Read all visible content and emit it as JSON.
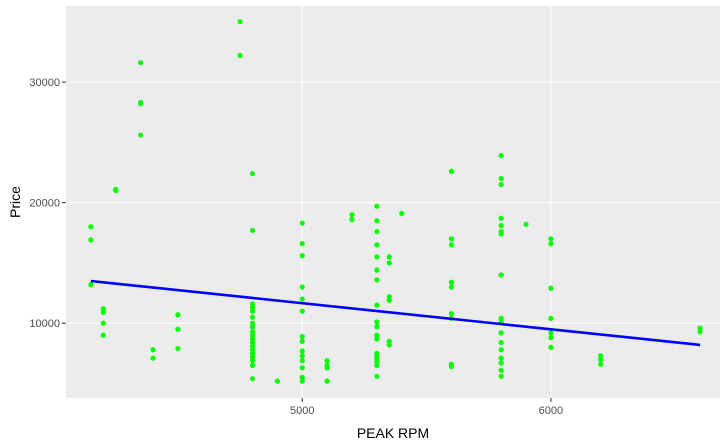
{
  "colors": {
    "panel_background": "#ebebeb",
    "grid_major": "#ffffff",
    "grid_minor": "#f2f2f2",
    "points": "#00ff00",
    "trend_line": "#0000ff",
    "tick_label": "#4d4d4d"
  },
  "chart_data": {
    "type": "scatter",
    "title": "",
    "xlabel": "PEAK RPM",
    "ylabel": "Price",
    "xlim": [
      4050,
      6680
    ],
    "ylim": [
      3800,
      36300
    ],
    "x_ticks": [
      5000,
      6000
    ],
    "y_ticks": [
      10000,
      20000,
      30000
    ],
    "x_tick_labels": [
      "5000",
      "6000"
    ],
    "y_tick_labels": [
      "10000",
      "20000",
      "30000"
    ],
    "grid": true,
    "legend": "none",
    "trend_line": {
      "x": [
        4150,
        6600
      ],
      "y": [
        13500,
        8200
      ]
    },
    "points": [
      [
        4150,
        18000
      ],
      [
        4150,
        16900
      ],
      [
        4150,
        13200
      ],
      [
        4200,
        11200
      ],
      [
        4200,
        10900
      ],
      [
        4200,
        10000
      ],
      [
        4200,
        9000
      ],
      [
        4250,
        21100
      ],
      [
        4250,
        21000
      ],
      [
        4350,
        31600
      ],
      [
        4350,
        28300
      ],
      [
        4350,
        28200
      ],
      [
        4350,
        25600
      ],
      [
        4400,
        7800
      ],
      [
        4400,
        7100
      ],
      [
        4500,
        10700
      ],
      [
        4500,
        9500
      ],
      [
        4500,
        7900
      ],
      [
        4750,
        35000
      ],
      [
        4750,
        32200
      ],
      [
        4800,
        22400
      ],
      [
        4800,
        17700
      ],
      [
        4800,
        11600
      ],
      [
        4800,
        11300
      ],
      [
        4800,
        11000
      ],
      [
        4800,
        10500
      ],
      [
        4800,
        10000
      ],
      [
        4800,
        9700
      ],
      [
        4800,
        9300
      ],
      [
        4800,
        9000
      ],
      [
        4800,
        8700
      ],
      [
        4800,
        8400
      ],
      [
        4800,
        8100
      ],
      [
        4800,
        7800
      ],
      [
        4800,
        7500
      ],
      [
        4800,
        7200
      ],
      [
        4800,
        6900
      ],
      [
        4800,
        6500
      ],
      [
        4800,
        5400
      ],
      [
        4900,
        5200
      ],
      [
        5000,
        18300
      ],
      [
        5000,
        16600
      ],
      [
        5000,
        15600
      ],
      [
        5000,
        13000
      ],
      [
        5000,
        12000
      ],
      [
        5000,
        11000
      ],
      [
        5000,
        8900
      ],
      [
        5000,
        8500
      ],
      [
        5000,
        7700
      ],
      [
        5000,
        7300
      ],
      [
        5000,
        6900
      ],
      [
        5000,
        6300
      ],
      [
        5000,
        5500
      ],
      [
        5000,
        5200
      ],
      [
        5100,
        6900
      ],
      [
        5100,
        6500
      ],
      [
        5100,
        6300
      ],
      [
        5100,
        5200
      ],
      [
        5200,
        19000
      ],
      [
        5200,
        18600
      ],
      [
        5300,
        19700
      ],
      [
        5300,
        18500
      ],
      [
        5300,
        17600
      ],
      [
        5300,
        16500
      ],
      [
        5300,
        15500
      ],
      [
        5300,
        14400
      ],
      [
        5300,
        13600
      ],
      [
        5300,
        11500
      ],
      [
        5300,
        10100
      ],
      [
        5300,
        9700
      ],
      [
        5300,
        9000
      ],
      [
        5300,
        8700
      ],
      [
        5300,
        7500
      ],
      [
        5300,
        7200
      ],
      [
        5300,
        7000
      ],
      [
        5300,
        6800
      ],
      [
        5300,
        6500
      ],
      [
        5300,
        5600
      ],
      [
        5350,
        15500
      ],
      [
        5350,
        15000
      ],
      [
        5350,
        12200
      ],
      [
        5350,
        11900
      ],
      [
        5350,
        8500
      ],
      [
        5350,
        8200
      ],
      [
        5400,
        19100
      ],
      [
        5600,
        22600
      ],
      [
        5600,
        17000
      ],
      [
        5600,
        16500
      ],
      [
        5600,
        13400
      ],
      [
        5600,
        13000
      ],
      [
        5600,
        10800
      ],
      [
        5600,
        10400
      ],
      [
        5600,
        6600
      ],
      [
        5600,
        6400
      ],
      [
        5800,
        23900
      ],
      [
        5800,
        22000
      ],
      [
        5800,
        21500
      ],
      [
        5800,
        18700
      ],
      [
        5800,
        18100
      ],
      [
        5800,
        17600
      ],
      [
        5800,
        17400
      ],
      [
        5800,
        14000
      ],
      [
        5800,
        10400
      ],
      [
        5800,
        10100
      ],
      [
        5800,
        9200
      ],
      [
        5800,
        8400
      ],
      [
        5800,
        7800
      ],
      [
        5800,
        7100
      ],
      [
        5800,
        6700
      ],
      [
        5800,
        6100
      ],
      [
        5800,
        5600
      ],
      [
        5900,
        18200
      ],
      [
        6000,
        17000
      ],
      [
        6000,
        16600
      ],
      [
        6000,
        12900
      ],
      [
        6000,
        10400
      ],
      [
        6000,
        9200
      ],
      [
        6000,
        8800
      ],
      [
        6000,
        8000
      ],
      [
        6200,
        7300
      ],
      [
        6200,
        7000
      ],
      [
        6200,
        6600
      ],
      [
        6600,
        9600
      ],
      [
        6600,
        9300
      ]
    ]
  }
}
